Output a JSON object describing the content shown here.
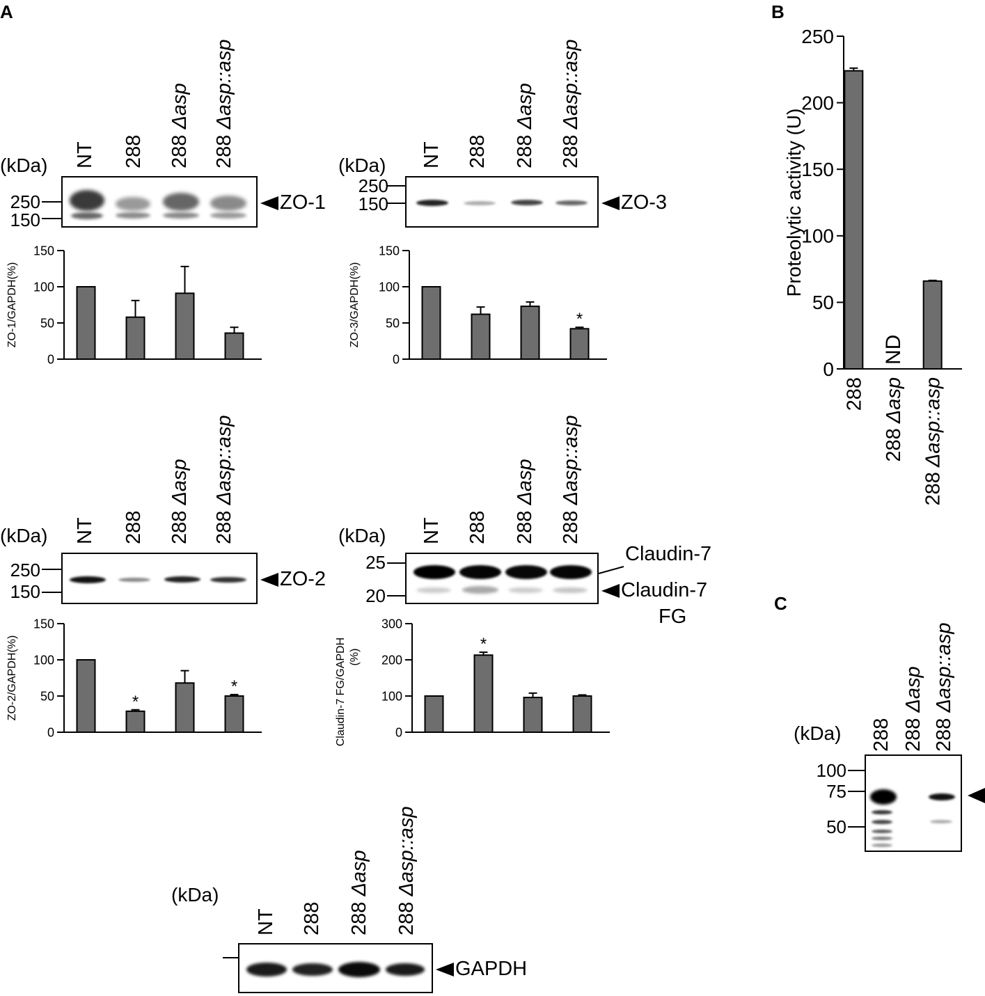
{
  "panels": {
    "A": "A",
    "B": "B",
    "C": "C"
  },
  "kda_label": "(kDa)",
  "lanes4": [
    "NT",
    "288",
    "288 Δasp",
    "288 Δasp::asp"
  ],
  "lanes3": [
    "288",
    "288 Δasp",
    "288 Δasp::asp"
  ],
  "zo1": {
    "target": "ZO-1",
    "mw": [
      "250",
      "150"
    ]
  },
  "zo3": {
    "target": "ZO-3",
    "mw": [
      "250",
      "150"
    ]
  },
  "zo2": {
    "target": "ZO-2",
    "mw": [
      "250",
      "150"
    ]
  },
  "cld": {
    "target_top": "Claudin-7",
    "target_bottom": "Claudin-7",
    "target_bottom2": "FG",
    "mw": [
      "25",
      "20"
    ]
  },
  "gapdh": {
    "target": "GAPDH"
  },
  "panel_c": {
    "mw": [
      "100",
      "75",
      "50"
    ]
  },
  "chart_data": [
    {
      "id": "zo1",
      "type": "bar",
      "categories": [
        "NT",
        "288",
        "288 Δasp",
        "288 Δasp::asp"
      ],
      "values": [
        100,
        58,
        91,
        36
      ],
      "errors": [
        0,
        23,
        37,
        8
      ],
      "significance": [
        "",
        "",
        "",
        ""
      ],
      "ylabel": "ZO-1/GAPDH(%)",
      "ylim": [
        0,
        150
      ],
      "yticks": [
        "0",
        "50",
        "100",
        "150"
      ]
    },
    {
      "id": "zo3",
      "type": "bar",
      "categories": [
        "NT",
        "288",
        "288 Δasp",
        "288 Δasp::asp"
      ],
      "values": [
        100,
        62,
        73,
        42
      ],
      "errors": [
        0,
        10,
        6,
        2
      ],
      "significance": [
        "",
        "",
        "",
        "*"
      ],
      "ylabel": "ZO-3/GAPDH(%)",
      "ylim": [
        0,
        150
      ],
      "yticks": [
        "0",
        "50",
        "100",
        "150"
      ]
    },
    {
      "id": "zo2",
      "type": "bar",
      "categories": [
        "NT",
        "288",
        "288 Δasp",
        "288 Δasp::asp"
      ],
      "values": [
        100,
        29,
        68,
        50
      ],
      "errors": [
        0,
        2,
        17,
        2
      ],
      "significance": [
        "",
        "*",
        "",
        "*"
      ],
      "ylabel": "ZO-2/GAPDH(%)",
      "ylim": [
        0,
        150
      ],
      "yticks": [
        "0",
        "50",
        "100",
        "150"
      ]
    },
    {
      "id": "cld",
      "type": "bar",
      "categories": [
        "NT",
        "288",
        "288 Δasp",
        "288 Δasp::asp"
      ],
      "values": [
        100,
        213,
        96,
        100
      ],
      "errors": [
        0,
        8,
        12,
        3
      ],
      "significance": [
        "",
        "*",
        "",
        ""
      ],
      "ylabel": "Claudin-7 FG/GAPDH",
      "ylabel2": "(%)",
      "ylim": [
        0,
        300
      ],
      "yticks": [
        "0",
        "100",
        "200",
        "300"
      ]
    },
    {
      "id": "prot",
      "type": "bar",
      "categories": [
        "288",
        "288 Δasp",
        "288 Δasp::asp"
      ],
      "values": [
        224,
        0,
        66
      ],
      "errors": [
        2,
        0,
        0.5
      ],
      "bar_labels": [
        "",
        "ND",
        ""
      ],
      "ylabel": "Proteolytic activity  (U)",
      "ylim": [
        0,
        250
      ],
      "yticks": [
        "0",
        "50",
        "100",
        "150",
        "200",
        "250"
      ]
    }
  ]
}
